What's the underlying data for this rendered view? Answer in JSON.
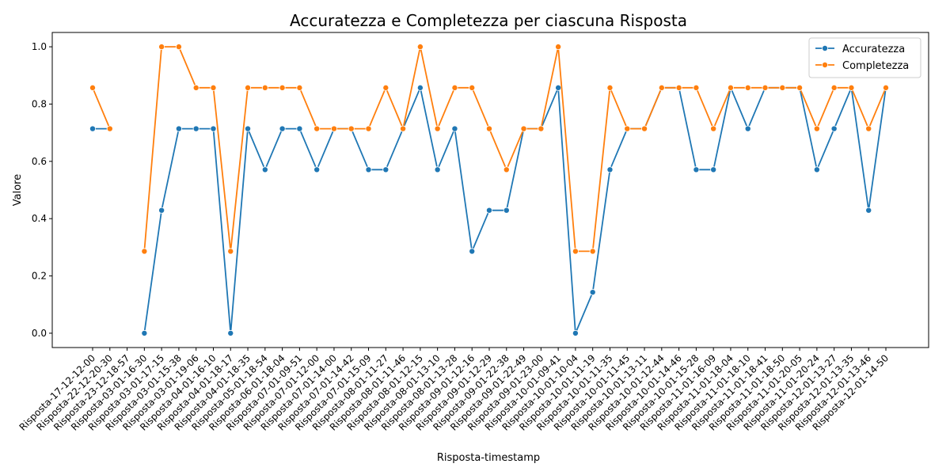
{
  "chart_data": {
    "type": "line",
    "title": "Accuratezza e Completezza per ciascuna Risposta",
    "xlabel": "Risposta-timestamp",
    "ylabel": "Valore",
    "ylim": [
      -0.05,
      1.05
    ],
    "yticks": [
      0.0,
      0.2,
      0.4,
      0.6,
      0.8,
      1.0
    ],
    "ytick_labels": [
      "0.0",
      "0.2",
      "0.4",
      "0.6",
      "0.8",
      "1.0"
    ],
    "grid": false,
    "legend_position": "top-right",
    "categories": [
      "Risposta-17-12-12-00",
      "Risposta-22-12-20-30",
      "Risposta-23-12-18-57",
      "Risposta-03-01-16-30",
      "Risposta-03-01-17-15",
      "Risposta-03-01-15-38",
      "Risposta-03-01-19-06",
      "Risposta-04-01-16-10",
      "Risposta-04-01-18-17",
      "Risposta-04-01-18-35",
      "Risposta-05-01-18-54",
      "Risposta-06-01-18-04",
      "Risposta-07-01-09-51",
      "Risposta-07-01-12-00",
      "Risposta-07-01-14-00",
      "Risposta-07-01-14-42",
      "Risposta-07-01-15-09",
      "Risposta-08-01-11-27",
      "Risposta-08-01-11-46",
      "Risposta-08-01-12-15",
      "Risposta-08-01-13-10",
      "Risposta-08-01-13-28",
      "Risposta-09-01-12-16",
      "Risposta-09-01-12-29",
      "Risposta-09-01-22-38",
      "Risposta-09-01-22-49",
      "Risposta-09-01-23-00",
      "Risposta-10-01-09-41",
      "Risposta-10-01-10-04",
      "Risposta-10-01-11-19",
      "Risposta-10-01-11-35",
      "Risposta-10-01-11-45",
      "Risposta-10-01-13-11",
      "Risposta-10-01-12-44",
      "Risposta-10-01-14-46",
      "Risposta-10-01-15-28",
      "Risposta-11-01-16-09",
      "Risposta-11-01-18-04",
      "Risposta-11-01-18-10",
      "Risposta-11-01-18-41",
      "Risposta-11-01-18-50",
      "Risposta-11-01-20-05",
      "Risposta-11-01-20-24",
      "Risposta-12-01-13-27",
      "Risposta-12-01-13-35",
      "Risposta-12-01-13-46",
      "Risposta-12-01-14-50"
    ],
    "series": [
      {
        "name": "Accuratezza",
        "color": "#1f77b4",
        "values": [
          0.714,
          0.714,
          null,
          0.0,
          0.429,
          0.714,
          0.714,
          0.714,
          0.0,
          0.714,
          0.571,
          0.714,
          0.714,
          0.571,
          0.714,
          0.714,
          0.571,
          0.571,
          0.714,
          0.857,
          0.571,
          0.714,
          0.286,
          0.429,
          0.429,
          0.714,
          0.714,
          0.857,
          0.0,
          0.143,
          0.571,
          0.714,
          0.714,
          0.857,
          0.857,
          0.571,
          0.571,
          0.857,
          0.714,
          0.857,
          0.857,
          0.857,
          0.571,
          0.714,
          0.857,
          0.429,
          0.857
        ]
      },
      {
        "name": "Completezza",
        "color": "#ff7f0e",
        "values": [
          0.857,
          0.714,
          null,
          0.286,
          1.0,
          1.0,
          0.857,
          0.857,
          0.286,
          0.857,
          0.857,
          0.857,
          0.857,
          0.714,
          0.714,
          0.714,
          0.714,
          0.857,
          0.714,
          1.0,
          0.714,
          0.857,
          0.857,
          0.714,
          0.571,
          0.714,
          0.714,
          1.0,
          0.286,
          0.286,
          0.857,
          0.714,
          0.714,
          0.857,
          0.857,
          0.857,
          0.714,
          0.857,
          0.857,
          0.857,
          0.857,
          0.857,
          0.714,
          0.857,
          0.857,
          0.714,
          0.857
        ]
      }
    ]
  }
}
